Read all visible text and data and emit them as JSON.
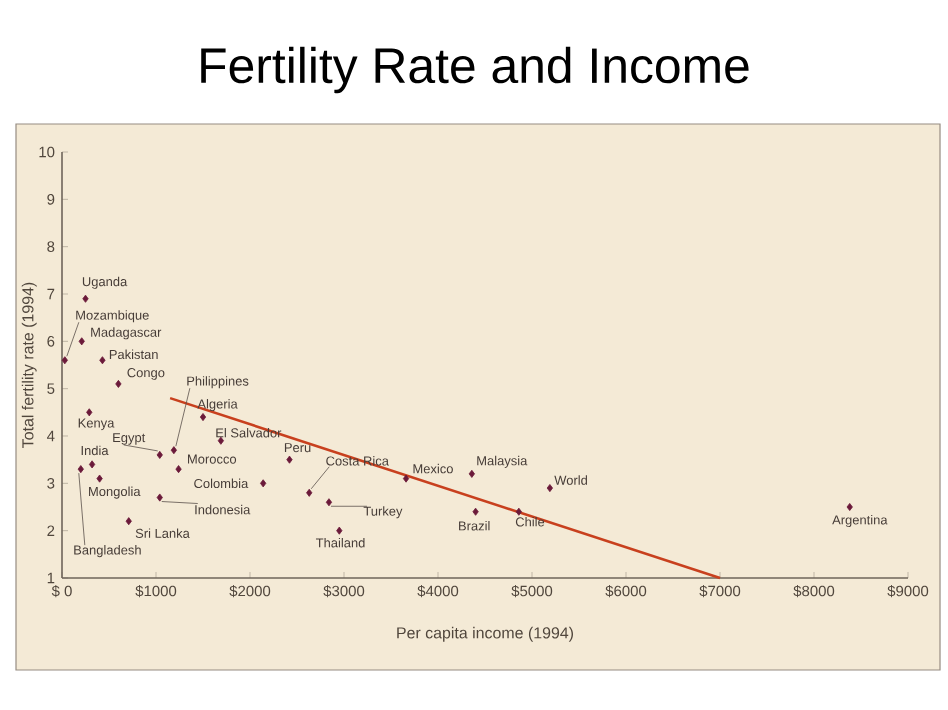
{
  "chart_data": {
    "type": "scatter",
    "title": "Fertility Rate and Income",
    "xlabel": "Per capita income (1994)",
    "ylabel": "Total fertility rate (1994)",
    "xlim": [
      0,
      9000
    ],
    "ylim": [
      1,
      10
    ],
    "xticks": [
      {
        "value": 0,
        "label": "$ 0"
      },
      {
        "value": 1000,
        "label": "$1000"
      },
      {
        "value": 2000,
        "label": "$2000"
      },
      {
        "value": 3000,
        "label": "$3000"
      },
      {
        "value": 4000,
        "label": "$4000"
      },
      {
        "value": 5000,
        "label": "$5000"
      },
      {
        "value": 6000,
        "label": "$6000"
      },
      {
        "value": 7000,
        "label": "$7000"
      },
      {
        "value": 8000,
        "label": "$8000"
      },
      {
        "value": 9000,
        "label": "$9000"
      }
    ],
    "yticks": [
      1,
      2,
      3,
      4,
      5,
      6,
      7,
      8,
      9,
      10
    ],
    "grid": false,
    "series": [
      {
        "type": "scatter",
        "marker": "diamond",
        "color": "#6b1a3a",
        "x": [
          250,
          30,
          210,
          430,
          600,
          290,
          1040,
          1190,
          1500,
          1690,
          1240,
          320,
          200,
          400,
          2140,
          1040,
          710,
          2420,
          2630,
          2840,
          2950,
          3660,
          4360,
          5190,
          4400,
          4860,
          8380
        ],
        "values": [
          6.9,
          5.6,
          6.0,
          5.6,
          5.1,
          4.5,
          3.6,
          3.7,
          4.4,
          3.9,
          3.3,
          3.4,
          3.3,
          3.1,
          3.0,
          2.7,
          2.2,
          3.5,
          2.8,
          2.6,
          2.0,
          3.1,
          3.2,
          2.9,
          2.4,
          2.4,
          2.5
        ]
      },
      {
        "type": "line",
        "marker": "none",
        "color": "#c8401e",
        "x": [
          1150,
          7000
        ],
        "values": [
          4.8,
          1.0
        ]
      }
    ],
    "annotations": [
      {
        "text": "Uganda",
        "x": 250,
        "y": 6.9
      },
      {
        "text": "Mozambique",
        "x": 30,
        "y": 5.6
      },
      {
        "text": "Madagascar",
        "x": 210,
        "y": 6.0
      },
      {
        "text": "Pakistan",
        "x": 430,
        "y": 5.6
      },
      {
        "text": "Congo",
        "x": 600,
        "y": 5.1
      },
      {
        "text": "Kenya",
        "x": 290,
        "y": 4.5
      },
      {
        "text": "Egypt",
        "x": 1040,
        "y": 3.6
      },
      {
        "text": "Philippines",
        "x": 1190,
        "y": 3.7
      },
      {
        "text": "Algeria",
        "x": 1500,
        "y": 4.4
      },
      {
        "text": "El Salvador",
        "x": 1690,
        "y": 3.9
      },
      {
        "text": "Morocco",
        "x": 1240,
        "y": 3.3
      },
      {
        "text": "India",
        "x": 320,
        "y": 3.4
      },
      {
        "text": "Bangladesh",
        "x": 200,
        "y": 3.3
      },
      {
        "text": "Mongolia",
        "x": 400,
        "y": 3.1
      },
      {
        "text": "Colombia",
        "x": 2140,
        "y": 3.0
      },
      {
        "text": "Indonesia",
        "x": 1040,
        "y": 2.7
      },
      {
        "text": "Sri Lanka",
        "x": 710,
        "y": 2.2
      },
      {
        "text": "Peru",
        "x": 2420,
        "y": 3.5
      },
      {
        "text": "Costa Rica",
        "x": 2630,
        "y": 2.8
      },
      {
        "text": "Turkey",
        "x": 2840,
        "y": 2.6
      },
      {
        "text": "Thailand",
        "x": 2950,
        "y": 2.0
      },
      {
        "text": "Mexico",
        "x": 3660,
        "y": 3.1
      },
      {
        "text": "Malaysia",
        "x": 4360,
        "y": 3.2
      },
      {
        "text": "World",
        "x": 5190,
        "y": 2.9
      },
      {
        "text": "Brazil",
        "x": 4400,
        "y": 2.4
      },
      {
        "text": "Chile",
        "x": 4860,
        "y": 2.4
      },
      {
        "text": "Argentina",
        "x": 8380,
        "y": 2.5
      }
    ]
  }
}
